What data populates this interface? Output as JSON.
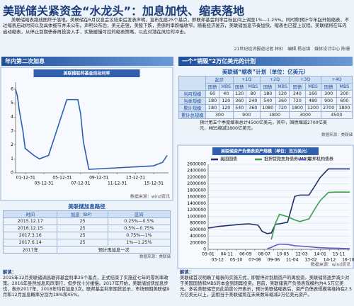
{
  "header": {
    "title": "美联储关紧资金“水龙头”：加息加快、缩表落地",
    "intro": "美联储缩表路线图终于落地。美联储在6月议息会议结束后发表声明，宣布加息25个基点，即联邦基金利率目标区间上调至1%—1.25%。同时称预计今年起开始缩表，不过缩表启动时间以及具体细节并未公布。声明公布后，美元走强，美股下跌，美债利率跌幅收窄。随着经济复苏，美联储加息节奏加快，缩表也已提上议程。美联储将在年内启动缩表，从停止到期债券再投资入手，实施缓慢可控的缩表策略，以应对潜在风险的冲击。",
    "credit": "21世纪经济报道记者 林虹　编辑 杨志锦　媒体设计中心 陈珊"
  },
  "left_section": "年内第二次加息",
  "right_section": "一个“销毁”2万亿美元的计划",
  "chart_data": [
    {
      "type": "line",
      "title": "美联储联邦基金目标利率",
      "color": "#2f5fae",
      "grid": false,
      "x": [
        2000.9,
        2001.1,
        2001.3,
        2001.5,
        2001.7,
        2001.95,
        2002.9,
        2003.5,
        2004.5,
        2005.0,
        2006.0,
        2006.5,
        2007.7,
        2008.0,
        2008.3,
        2008.9,
        2015.95,
        2016.95,
        2017.2,
        2017.45
      ],
      "values": [
        6.0,
        5.5,
        4.5,
        3.75,
        3.0,
        1.75,
        1.25,
        1.0,
        1.25,
        2.25,
        4.25,
        5.25,
        5.25,
        4.25,
        2.25,
        0.25,
        0.5,
        0.75,
        1.0,
        1.25
      ],
      "xlim": [
        2000.9,
        2017.6
      ],
      "xticks": [
        {
          "value": 2002,
          "label": "01-12-31"
        },
        {
          "value": 2004,
          "label": "03-12-31"
        },
        {
          "value": 2006,
          "label": "05-12-31"
        },
        {
          "value": 2008,
          "label": "07-12-31"
        },
        {
          "value": 2010,
          "label": "09-12-31"
        },
        {
          "value": 2012,
          "label": "11-12-31"
        },
        {
          "value": 2014,
          "label": "13-12-31"
        },
        {
          "value": 2016,
          "label": "15-12-31"
        }
      ],
      "ylim": [
        0,
        6.5
      ],
      "yticks": [
        0,
        1,
        2,
        3,
        4,
        5,
        6
      ],
      "source": "数据来源：wind资讯"
    },
    {
      "type": "line",
      "title": "美联储资产负债表资产规模（单位：百万美元）",
      "grid": true,
      "x": [
        2003.0,
        2004.0,
        2005.0,
        2006.0,
        2007.0,
        2007.9,
        2008.3,
        2008.8,
        2009.2,
        2009.6,
        2010.0,
        2010.8,
        2011.5,
        2012.0,
        2012.9,
        2013.5,
        2014.0,
        2014.8,
        2015.5,
        2016.9
      ],
      "series": [
        {
          "name": "美国国债",
          "color": "#1f2d6b",
          "values": [
            650000,
            700000,
            730000,
            760000,
            780000,
            740000,
            550000,
            480000,
            500000,
            770000,
            780000,
            830000,
            1620000,
            1660000,
            1660000,
            1950000,
            2200000,
            2460000,
            2460000,
            2460000
          ]
        },
        {
          "name": "抵押贷款支持债券(MBS)",
          "color": "#3aa04a",
          "values": [
            null,
            null,
            null,
            null,
            null,
            null,
            null,
            null,
            300000,
            800000,
            1070000,
            1000000,
            900000,
            850000,
            930000,
            1250000,
            1490000,
            1740000,
            1750000,
            1750000
          ]
        },
        {
          "name": "联邦机构债券",
          "color": "#5b5fc7",
          "values": [
            null,
            null,
            null,
            null,
            null,
            null,
            null,
            20000,
            60000,
            120000,
            160000,
            150000,
            110000,
            100000,
            80000,
            60000,
            50000,
            40000,
            33000,
            20000
          ]
        }
      ],
      "xlim": [
        2003.0,
        2016.9
      ],
      "xticks": [
        {
          "value": 2003.0,
          "label": "03-01"
        },
        {
          "value": 2003.92,
          "label": "03-12"
        },
        {
          "value": 2004.83,
          "label": "04-11"
        },
        {
          "value": 2005.75,
          "label": "05-10"
        },
        {
          "value": 2006.67,
          "label": "06-09"
        },
        {
          "value": 2007.58,
          "label": "07-08"
        },
        {
          "value": 2008.5,
          "label": "08-07"
        },
        {
          "value": 2009.42,
          "label": "09-06"
        },
        {
          "value": 2010.33,
          "label": "10-05"
        },
        {
          "value": 2011.25,
          "label": "11-04"
        },
        {
          "value": 2012.17,
          "label": "12-03"
        },
        {
          "value": 2013.08,
          "label": "13-02"
        },
        {
          "value": 2014.0,
          "label": "14-01"
        },
        {
          "value": 2014.92,
          "label": "14-12"
        },
        {
          "value": 2015.83,
          "label": "15-11"
        },
        {
          "value": 2016.75,
          "label": "16-10"
        }
      ],
      "ylim": [
        0,
        2600000
      ],
      "yticks": [
        0,
        200000,
        400000,
        600000,
        800000,
        1000000,
        1200000,
        1400000,
        1600000,
        1800000,
        2000000,
        2200000,
        2400000,
        2600000
      ],
      "source": "数据来源：wind资讯"
    }
  ],
  "rate_table": {
    "title": "美联储加息路径",
    "columns": [
      "时间",
      "加息（BP）",
      "区间"
    ],
    "rows": [
      [
        "2015.12.17",
        "25",
        "0.25%—0.5%"
      ],
      [
        "2016.12.15",
        "25",
        "0.5%—0.75%"
      ],
      [
        "2017.3.16",
        "25",
        "0.75%—1%"
      ],
      [
        "2017.6.14",
        "25",
        "1%—1.25%"
      ],
      [
        "2017年",
        "预计再加息一次"
      ]
    ],
    "source": "数据来源：美联储"
  },
  "taper_table": {
    "title": "美联储“缩表”计划（单位：亿美元）",
    "groups": [
      "起步",
      "+1Q",
      "+2Q",
      "+3Q",
      "+4Q"
    ],
    "sub": [
      "国债",
      "MBS"
    ],
    "rows": [
      {
        "label": "当月规模",
        "values": [
          "60",
          "40",
          "120",
          "80",
          "180",
          "120",
          "240",
          "160",
          "300",
          "200"
        ]
      },
      {
        "label": "当季规模",
        "values": [
          "180",
          "120",
          "360",
          "240",
          "540",
          "360",
          "720",
          "480",
          "900",
          "600"
        ]
      },
      {
        "label": "累计规模",
        "values": [
          "180",
          "120",
          "540",
          "360",
          "1080",
          "720",
          "1800",
          "1200",
          "2700",
          "1800"
        ]
      },
      {
        "label": "累计总规模",
        "values": [
          "300",
          "900",
          "1800",
          "3000",
          "4500"
        ]
      }
    ],
    "note": "预计用五个季度缩表总计4500亿美元，其中，国债缩减2700亿美元，MBS缩减1800亿美元。",
    "source": "数据来源：美联储"
  },
  "left_note": {
    "label": "解读：",
    "text": "2015年12月美联储调高联邦基金利率25个基点，正式结束了实施近七年的零利率政策。2016年虽然加息风声渐行，但步伐十分缓慢。2017年开始，美联储加快加息步伐，表示2017年、2018年均有加息3次。联邦基金利率期货显示，市场预期美联储9月和12月加息概率分别为18%和45%。"
  },
  "right_note": {
    "label": "解读：",
    "text": "美联储首次明确了缩表的实施方式，即暂停对到期资产的再投资。美联储将逐步减少对于美国国债和MBS的本金到期再投资。目前，美联储资产负债表规模约为4.5万亿美元。多名美联储官员此前曾公开表示，预计美联储缩表后，资产负债表规模将维持在2.5万亿美元以上，这相当于美联储将在未来数年缩减2万亿美元资产。"
  }
}
